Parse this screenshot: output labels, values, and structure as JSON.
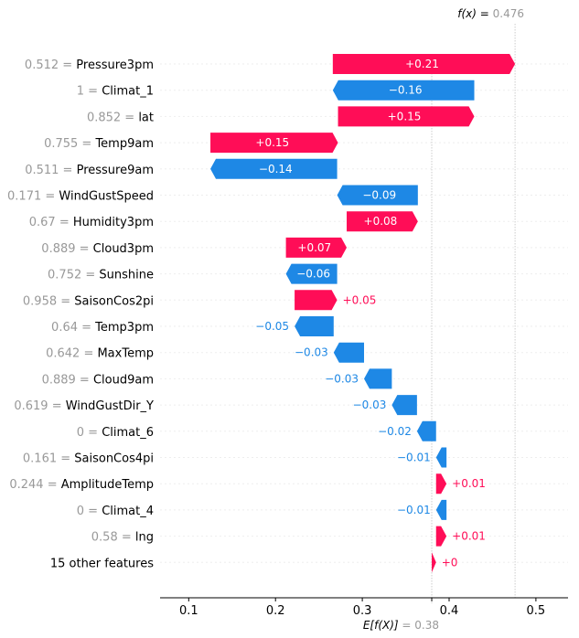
{
  "chart_data": {
    "type": "waterfall",
    "fx_label": "f(x)",
    "fx_value": "0.476",
    "base_label": "E[f(X)]",
    "base_value": "0.38",
    "fx": 0.476,
    "base": 0.38,
    "xlim": [
      0.067,
      0.537
    ],
    "x_ticks": [
      0.1,
      0.2,
      0.3,
      0.4,
      0.5
    ],
    "x_tick_labels": [
      "0.1",
      "0.2",
      "0.3",
      "0.4",
      "0.5"
    ],
    "colors": {
      "positive": "#ff0d57",
      "negative": "#1e88e5",
      "value_text": "#999999"
    },
    "rows": [
      {
        "value_text": "0.512",
        "feature": "Pressure3pm",
        "start": 0.266,
        "end": 0.476,
        "label": "+0.21"
      },
      {
        "value_text": "1",
        "feature": "Climat_1",
        "start": 0.429,
        "end": 0.266,
        "label": "−0.16"
      },
      {
        "value_text": "0.852",
        "feature": "lat",
        "start": 0.272,
        "end": 0.429,
        "label": "+0.15"
      },
      {
        "value_text": "0.755",
        "feature": "Temp9am",
        "start": 0.125,
        "end": 0.272,
        "label": "+0.15"
      },
      {
        "value_text": "0.511",
        "feature": "Pressure9am",
        "start": 0.271,
        "end": 0.125,
        "label": "−0.14"
      },
      {
        "value_text": "0.171",
        "feature": "WindGustSpeed",
        "start": 0.364,
        "end": 0.271,
        "label": "−0.09"
      },
      {
        "value_text": "0.67",
        "feature": "Humidity3pm",
        "start": 0.282,
        "end": 0.364,
        "label": "+0.08"
      },
      {
        "value_text": "0.889",
        "feature": "Cloud3pm",
        "start": 0.212,
        "end": 0.282,
        "label": "+0.07"
      },
      {
        "value_text": "0.752",
        "feature": "Sunshine",
        "start": 0.271,
        "end": 0.212,
        "label": "−0.06"
      },
      {
        "value_text": "0.958",
        "feature": "SaisonCos2pi",
        "start": 0.222,
        "end": 0.271,
        "label": "+0.05"
      },
      {
        "value_text": "0.64",
        "feature": "Temp3pm",
        "start": 0.267,
        "end": 0.222,
        "label": "−0.05"
      },
      {
        "value_text": "0.642",
        "feature": "MaxTemp",
        "start": 0.302,
        "end": 0.267,
        "label": "−0.03"
      },
      {
        "value_text": "0.889",
        "feature": "Cloud9am",
        "start": 0.334,
        "end": 0.302,
        "label": "−0.03"
      },
      {
        "value_text": "0.619",
        "feature": "WindGustDir_Y",
        "start": 0.363,
        "end": 0.334,
        "label": "−0.03"
      },
      {
        "value_text": "0",
        "feature": "Climat_6",
        "start": 0.385,
        "end": 0.363,
        "label": "−0.02"
      },
      {
        "value_text": "0.161",
        "feature": "SaisonCos4pi",
        "start": 0.397,
        "end": 0.385,
        "label": "−0.01"
      },
      {
        "value_text": "0.244",
        "feature": "AmplitudeTemp",
        "start": 0.385,
        "end": 0.397,
        "label": "+0.01"
      },
      {
        "value_text": "0",
        "feature": "Climat_4",
        "start": 0.397,
        "end": 0.385,
        "label": "−0.01"
      },
      {
        "value_text": "0.58",
        "feature": "lng",
        "start": 0.385,
        "end": 0.397,
        "label": "+0.01"
      },
      {
        "value_text": "",
        "feature": "15 other features",
        "start": 0.38,
        "end": 0.385,
        "label": "+0"
      }
    ]
  }
}
